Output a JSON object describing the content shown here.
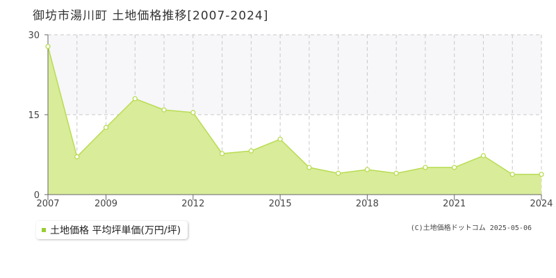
{
  "title": "御坊市湯川町 土地価格推移[2007-2024]",
  "legend_label": "土地価格 平均坪単価(万円/坪)",
  "copyright": "(C)土地価格ドットコム 2025-05-06",
  "colors": {
    "fill": "#d9ec9a",
    "line": "#b8dc50",
    "legend_swatch": "#9acd32",
    "band": "#f7f6f9",
    "grid": "#c8c8c8"
  },
  "chart_data": {
    "type": "area",
    "title": "御坊市湯川町 土地価格推移[2007-2024]",
    "x": [
      2007,
      2008,
      2009,
      2010,
      2011,
      2012,
      2013,
      2014,
      2015,
      2016,
      2017,
      2018,
      2019,
      2020,
      2021,
      2022,
      2023,
      2024
    ],
    "series": [
      {
        "name": "土地価格 平均坪単価(万円/坪)",
        "values": [
          27.8,
          7.1,
          12.6,
          18.0,
          15.9,
          15.4,
          7.7,
          8.2,
          10.4,
          5.1,
          4.0,
          4.7,
          4.0,
          5.1,
          5.1,
          7.3,
          3.8,
          3.8
        ]
      }
    ],
    "x_ticks": [
      "2007",
      "2009",
      "2012",
      "2015",
      "2018",
      "2021",
      "2024"
    ],
    "y_ticks": [
      "0",
      "15",
      "30"
    ],
    "ylim": [
      0,
      30
    ],
    "grid": true,
    "legend_position": "bottom-left"
  }
}
